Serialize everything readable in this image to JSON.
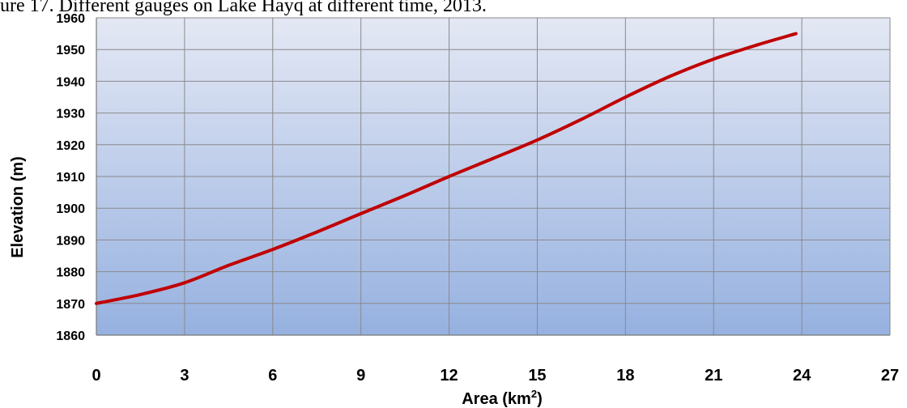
{
  "caption": "ure 17. Different gauges on Lake Hayq at different time, 2013.",
  "chart_data": {
    "type": "line",
    "xlabel": "Area (km",
    "xlabel_sup": "2",
    "xlabel_close": ")",
    "ylabel": "Elevation (m)",
    "xlim": [
      0,
      27
    ],
    "ylim": [
      1860,
      1960
    ],
    "xticks": [
      0,
      3,
      6,
      9,
      12,
      15,
      18,
      21,
      24,
      27
    ],
    "yticks": [
      1860,
      1870,
      1880,
      1890,
      1900,
      1910,
      1920,
      1930,
      1940,
      1950,
      1960
    ],
    "grid": true,
    "series": [
      {
        "color": "#c00000",
        "x": [
          0,
          1.5,
          3,
          4.5,
          6,
          7.5,
          9,
          10.5,
          12,
          13.5,
          15,
          16.5,
          18,
          19.5,
          21,
          22.5,
          23.8
        ],
        "y": [
          1870,
          1872.8,
          1876.5,
          1882,
          1887,
          1892.5,
          1898.3,
          1904,
          1910,
          1915.7,
          1921.5,
          1928,
          1935,
          1941.5,
          1947,
          1951.5,
          1955
        ]
      }
    ],
    "background_gradient": [
      "#e4e8f4",
      "#96b1e0"
    ]
  }
}
